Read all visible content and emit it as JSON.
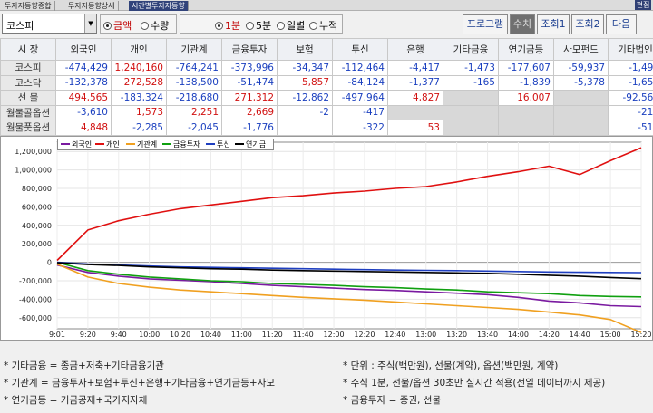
{
  "tabs": [
    "투자자동향종합",
    "투자자동향상세",
    "시간별투자자동향"
  ],
  "edit_label": "편집",
  "market_select": "코스피",
  "radio1": {
    "options": [
      "금액",
      "수량"
    ],
    "selected": 0
  },
  "radio2": {
    "options": [
      "1분",
      "5분",
      "일별",
      "누적"
    ],
    "selected": 0
  },
  "buttons": [
    "프로그램",
    "수치",
    "조회1",
    "조회2",
    "다음"
  ],
  "table": {
    "headers": [
      "시  장",
      "외국인",
      "개인",
      "기관계",
      "금융투자",
      "보험",
      "투신",
      "은행",
      "기타금융",
      "연기금등",
      "사모펀드",
      "기타법인"
    ],
    "rows": [
      {
        "label": "코스피",
        "cells": [
          "-474,429",
          "1,240,160",
          "-764,241",
          "-373,996",
          "-34,347",
          "-112,464",
          "-4,417",
          "-1,473",
          "-177,607",
          "-59,937",
          "-1,490"
        ]
      },
      {
        "label": "코스닥",
        "cells": [
          "-132,378",
          "272,528",
          "-138,500",
          "-51,474",
          "5,857",
          "-84,124",
          "-1,377",
          "-165",
          "-1,839",
          "-5,378",
          "-1,650"
        ]
      },
      {
        "label": "선  물",
        "cells": [
          "494,565",
          "-183,324",
          "-218,680",
          "271,312",
          "-12,862",
          "-497,964",
          "4,827",
          "",
          "16,007",
          "",
          "-92,561"
        ]
      },
      {
        "label": "월물콜옵션",
        "cells": [
          "-3,610",
          "1,573",
          "2,251",
          "2,669",
          "-2",
          "-417",
          "",
          "",
          "",
          "",
          "-214"
        ]
      },
      {
        "label": "월물풋옵션",
        "cells": [
          "4,848",
          "-2,285",
          "-2,045",
          "-1,776",
          "",
          "-322",
          "53",
          "",
          "",
          "",
          "-518"
        ]
      }
    ]
  },
  "chart_data": {
    "type": "line",
    "x": [
      "9:01",
      "9:20",
      "9:40",
      "10:00",
      "10:20",
      "10:40",
      "11:00",
      "11:20",
      "11:40",
      "12:00",
      "12:20",
      "12:40",
      "13:00",
      "13:20",
      "13:40",
      "14:00",
      "14:20",
      "14:40",
      "15:00",
      "15:20"
    ],
    "y_ticks": [
      "1,200,000",
      "1,000,000",
      "800,000",
      "600,000",
      "400,000",
      "200,000",
      "0",
      "-200,000",
      "-400,000",
      "-600,000"
    ],
    "ylim": [
      -720000,
      1300000
    ],
    "series": [
      {
        "name": "외국인",
        "color": "#7a1aa0",
        "values": [
          -30000,
          -110000,
          -150000,
          -180000,
          -195000,
          -210000,
          -230000,
          -250000,
          -265000,
          -280000,
          -295000,
          -305000,
          -320000,
          -335000,
          -350000,
          -380000,
          -420000,
          -440000,
          -470000,
          -480000
        ]
      },
      {
        "name": "개인",
        "color": "#e01010",
        "values": [
          20000,
          350000,
          450000,
          520000,
          580000,
          620000,
          660000,
          700000,
          720000,
          750000,
          770000,
          800000,
          820000,
          870000,
          930000,
          980000,
          1040000,
          950000,
          1100000,
          1240000
        ]
      },
      {
        "name": "기관계",
        "color": "#f0a020",
        "values": [
          -20000,
          -160000,
          -230000,
          -270000,
          -300000,
          -320000,
          -340000,
          -360000,
          -380000,
          -395000,
          -410000,
          -430000,
          -450000,
          -470000,
          -490000,
          -510000,
          -540000,
          -570000,
          -620000,
          -760000
        ]
      },
      {
        "name": "금융투자",
        "color": "#10a010",
        "values": [
          0,
          -90000,
          -130000,
          -160000,
          -180000,
          -200000,
          -210000,
          -230000,
          -240000,
          -250000,
          -265000,
          -275000,
          -290000,
          -300000,
          -320000,
          -330000,
          -340000,
          -360000,
          -370000,
          -375000
        ]
      },
      {
        "name": "투신",
        "color": "#1f3fc0",
        "values": [
          0,
          -20000,
          -30000,
          -40000,
          -50000,
          -55000,
          -60000,
          -65000,
          -70000,
          -75000,
          -80000,
          -85000,
          -88000,
          -90000,
          -95000,
          -100000,
          -105000,
          -108000,
          -110000,
          -112000
        ]
      },
      {
        "name": "연기금",
        "color": "#000000",
        "values": [
          -5000,
          -25000,
          -35000,
          -50000,
          -60000,
          -70000,
          -75000,
          -85000,
          -90000,
          -95000,
          -100000,
          -105000,
          -110000,
          -115000,
          -120000,
          -130000,
          -140000,
          -150000,
          -165000,
          -178000
        ]
      }
    ]
  },
  "notes": {
    "left": [
      "* 기타금융 = 종금+저축+기타금융기관",
      "* 기관계 = 금융투자+보험+투신+은행+기타금융+연기금등+사모",
      "* 연기금등 = 기금공제+국가지자체"
    ],
    "right": [
      "* 단위 : 주식(백만원), 선물(계약), 옵션(백만원, 계약)",
      "* 주식 1분, 선물/옵션 30초만 실시간 적용(전일 데이터까지 제공)",
      "* 금융투자 = 증권, 선물"
    ]
  }
}
